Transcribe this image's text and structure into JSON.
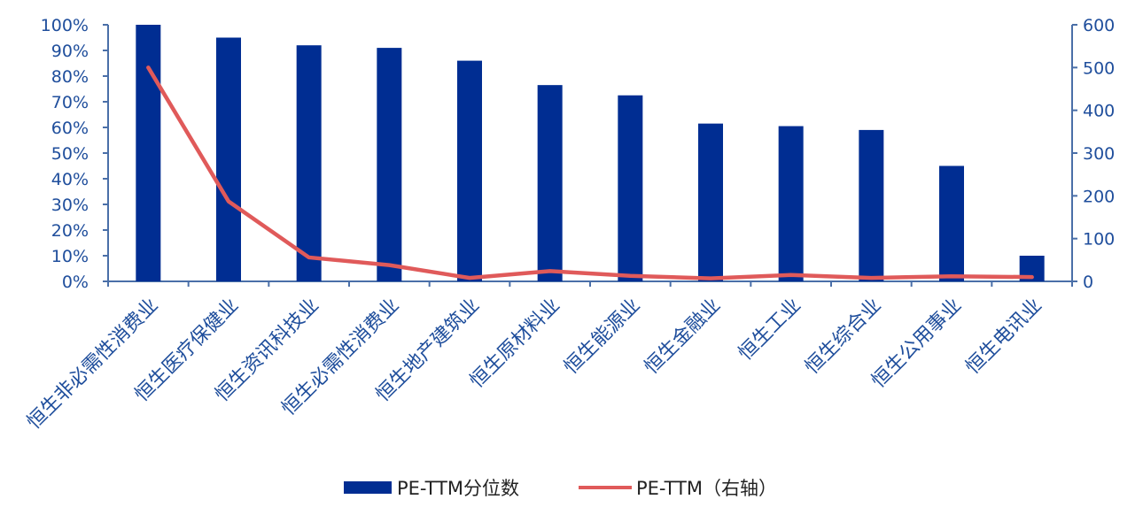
{
  "chart_data": {
    "type": "bar",
    "categories": [
      "恒生非必需性消费业",
      "恒生医疗保健业",
      "恒生资讯科技业",
      "恒生必需性消费业",
      "恒生地产建筑业",
      "恒生原材料业",
      "恒生能源业",
      "恒生金融业",
      "恒生工业",
      "恒生综合业",
      "恒生公用事业",
      "恒生电讯业"
    ],
    "series": [
      {
        "name": "PE-TTM分位数",
        "type": "bar",
        "axis": "left",
        "values": [
          100,
          95,
          92,
          91,
          86,
          76.5,
          72.5,
          61.5,
          60.5,
          59,
          45,
          10
        ]
      },
      {
        "name": "PE-TTM（右轴）",
        "type": "line",
        "axis": "right",
        "values": [
          500,
          187,
          56,
          38,
          8,
          24,
          13,
          7,
          15,
          8,
          12,
          10
        ]
      }
    ],
    "y_left": {
      "min": 0,
      "max": 100,
      "step": 10,
      "tick_labels": [
        "0%",
        "10%",
        "20%",
        "30%",
        "40%",
        "50%",
        "60%",
        "70%",
        "80%",
        "90%",
        "100%"
      ]
    },
    "y_right": {
      "min": 0,
      "max": 600,
      "step": 100,
      "tick_labels": [
        "0",
        "100",
        "200",
        "300",
        "400",
        "500",
        "600"
      ]
    },
    "grid": false,
    "legend_position": "bottom",
    "colors": {
      "bar": "#002d92",
      "line": "#e05a5a",
      "axis": "#4a6fa8",
      "text": "#1f4e9c"
    }
  }
}
